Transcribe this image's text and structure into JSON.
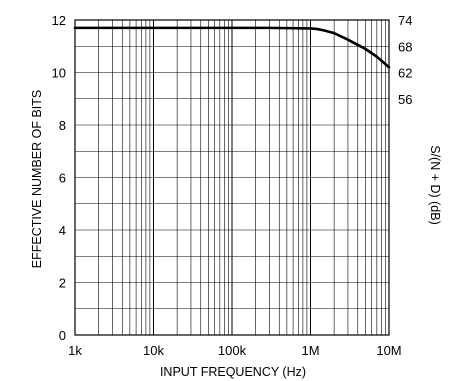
{
  "chart_data": {
    "type": "line",
    "title": "",
    "xlabel": "INPUT FREQUENCY (Hz)",
    "ylabel": "EFFECTIVE NUMBER OF BITS",
    "y2label": "S/(N + D) (dB)",
    "xscale": "log",
    "xlim": [
      1000,
      10000000
    ],
    "ylim": [
      0,
      12
    ],
    "grid": true,
    "x_ticks": [
      {
        "value": 1000,
        "label": "1k"
      },
      {
        "value": 10000,
        "label": "10k"
      },
      {
        "value": 100000,
        "label": "100k"
      },
      {
        "value": 1000000,
        "label": "1M"
      },
      {
        "value": 10000000,
        "label": "10M"
      }
    ],
    "y_ticks": [
      {
        "value": 0,
        "label": "0"
      },
      {
        "value": 2,
        "label": "2"
      },
      {
        "value": 4,
        "label": "4"
      },
      {
        "value": 6,
        "label": "6"
      },
      {
        "value": 8,
        "label": "8"
      },
      {
        "value": 10,
        "label": "10"
      },
      {
        "value": 12,
        "label": "12"
      }
    ],
    "y2_ticks": [
      {
        "value": 12,
        "label": "74"
      },
      {
        "value": 11,
        "label": "68"
      },
      {
        "value": 10,
        "label": "62"
      },
      {
        "value": 9,
        "label": "56"
      }
    ],
    "series": [
      {
        "x": [
          1000,
          3000,
          10000,
          30000,
          100000,
          300000,
          1000000,
          1200000,
          1500000,
          2000000,
          3000000,
          4000000,
          5000000,
          7000000,
          10000000
        ],
        "values": [
          11.7,
          11.7,
          11.7,
          11.7,
          11.7,
          11.7,
          11.68,
          11.66,
          11.6,
          11.5,
          11.25,
          11.05,
          10.9,
          10.6,
          10.2
        ]
      }
    ],
    "line_color": "#000000",
    "grid_color": "#000000"
  }
}
